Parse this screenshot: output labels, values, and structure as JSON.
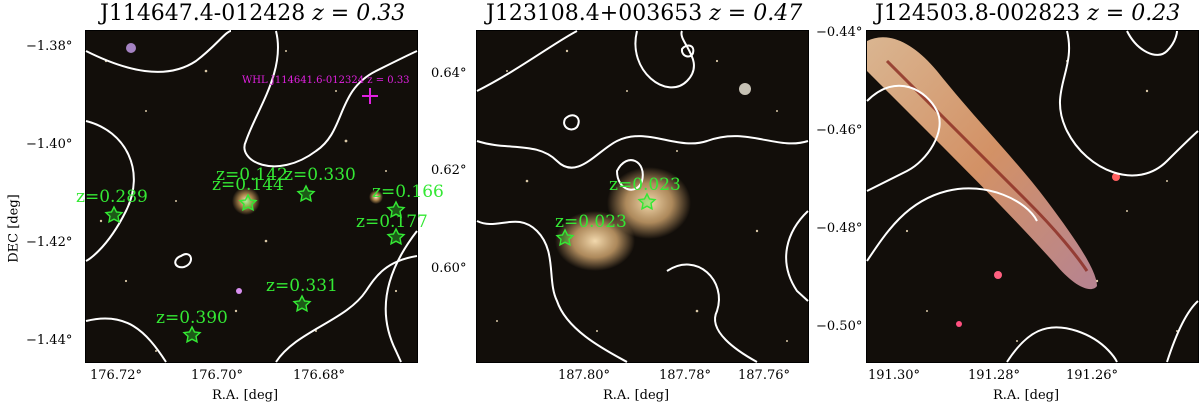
{
  "panels": [
    {
      "title": "J114647.4-012428",
      "z_label": "z = 0.33",
      "ylabel": "DEC [deg]",
      "xlabel": "R.A. [deg]",
      "yticks": [
        "−1.38°",
        "−1.40°",
        "−1.42°",
        "−1.44°"
      ],
      "xticks": [
        "176.72°",
        "176.70°",
        "176.68°"
      ],
      "cluster_label": "WHL J114641.6-012324 z = 0.33",
      "sources": [
        {
          "label": "z=0.289"
        },
        {
          "label": "z=0.144"
        },
        {
          "label": "z=0.142"
        },
        {
          "label": "z=0.330"
        },
        {
          "label": "z=0.166"
        },
        {
          "label": "z=0.177"
        },
        {
          "label": "z=0.331"
        },
        {
          "label": "z=0.390"
        }
      ]
    },
    {
      "title": "J123108.4+003653",
      "z_label": "z = 0.47",
      "xlabel": "R.A. [deg]",
      "yticks": [
        "0.64°",
        "0.62°",
        "0.60°"
      ],
      "xticks": [
        "187.80°",
        "187.78°",
        "187.76°"
      ],
      "sources": [
        {
          "label": "z=0.023"
        },
        {
          "label": "z=0.023"
        }
      ]
    },
    {
      "title": "J124503.8-002823",
      "z_label": "z = 0.23",
      "xlabel": "R.A. [deg]",
      "yticks": [
        "−0.44°",
        "−0.46°",
        "−0.48°",
        "−0.50°"
      ],
      "xticks": [
        "191.30°",
        "191.28°",
        "191.26°"
      ]
    }
  ],
  "colors": {
    "source_marker": "#34e834",
    "cluster_marker": "#e020e0",
    "contour": "#ffffff",
    "sky_background": "#120e0a"
  }
}
